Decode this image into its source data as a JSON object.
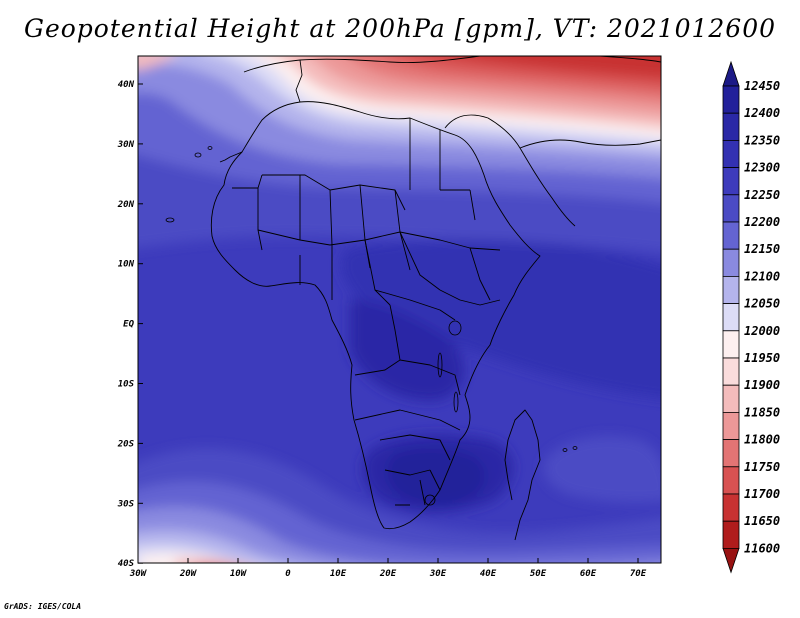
{
  "title": "Geopotential Height at 200hPa [gpm], VT: 2021012600",
  "credit": "GrADS: IGES/COLA",
  "lat_labels": [
    "40N",
    "30N",
    "20N",
    "10N",
    "EQ",
    "10S",
    "20S",
    "30S",
    "40S"
  ],
  "lon_labels": [
    "30W",
    "20W",
    "10W",
    "0",
    "10E",
    "20E",
    "30E",
    "40E",
    "50E",
    "60E",
    "70E"
  ],
  "colorbar": {
    "levels": [
      "12450",
      "12400",
      "12350",
      "12300",
      "12250",
      "12200",
      "12150",
      "12100",
      "12050",
      "12000",
      "11950",
      "11900",
      "11850",
      "11800",
      "11750",
      "11700",
      "11650",
      "11600"
    ],
    "colors": [
      "#1c1a86",
      "#22209a",
      "#2a28a6",
      "#3331b2",
      "#3d3bbc",
      "#4b4bc4",
      "#6464d2",
      "#8a8ae0",
      "#b4b4ec",
      "#dcdcf6",
      "#fdf0f0",
      "#fadcdc",
      "#f4bcbc",
      "#ec9898",
      "#e37474",
      "#d85252",
      "#c83232",
      "#b01c1c",
      "#981212"
    ]
  }
}
